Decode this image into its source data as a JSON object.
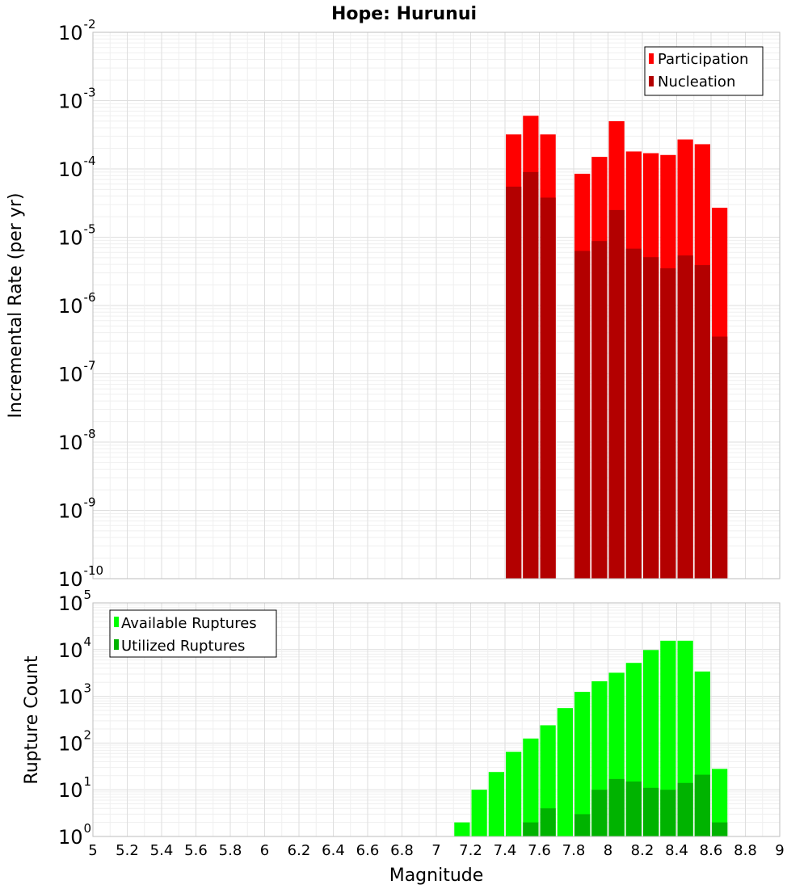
{
  "chart_data": [
    {
      "type": "bar",
      "panel": "top",
      "title": "Hope: Hurunui",
      "xlabel": "",
      "ylabel": "Incremental Rate (per yr)",
      "yscale": "log",
      "ylim_exponents": [
        -10,
        -2
      ],
      "xlim": [
        5,
        9
      ],
      "bin_width": 0.1,
      "legend": {
        "placement": "top-right",
        "entries": [
          "Participation",
          "Nucleation"
        ]
      },
      "series": [
        {
          "name": "Participation",
          "color": "#ff0000",
          "x": [
            7.45,
            7.55,
            7.65,
            7.85,
            7.95,
            8.05,
            8.15,
            8.25,
            8.35,
            8.45,
            8.55,
            8.65
          ],
          "values": [
            0.00032,
            0.0006,
            0.00032,
            8.5e-05,
            0.00015,
            0.0005,
            0.00018,
            0.00017,
            0.00016,
            0.00027,
            0.00023,
            2.7e-05
          ]
        },
        {
          "name": "Nucleation",
          "color": "#b30000",
          "x": [
            7.45,
            7.55,
            7.65,
            7.85,
            7.95,
            8.05,
            8.15,
            8.25,
            8.35,
            8.45,
            8.55,
            8.65
          ],
          "values": [
            5.5e-05,
            9e-05,
            3.8e-05,
            6.3e-06,
            8.8e-06,
            2.5e-05,
            6.8e-06,
            5.1e-06,
            3.5e-06,
            5.4e-06,
            3.9e-06,
            3.5e-07
          ]
        }
      ]
    },
    {
      "type": "bar",
      "panel": "bottom",
      "title": "",
      "xlabel": "Magnitude",
      "ylabel": "Rupture Count",
      "yscale": "log",
      "ylim_exponents": [
        0,
        5
      ],
      "xlim": [
        5,
        9
      ],
      "x_ticks": [
        "5",
        "5.2",
        "5.4",
        "5.6",
        "5.8",
        "6",
        "6.2",
        "6.4",
        "6.6",
        "6.8",
        "7",
        "7.2",
        "7.4",
        "7.6",
        "7.8",
        "8",
        "8.2",
        "8.4",
        "8.6",
        "8.8",
        "9"
      ],
      "bin_width": 0.1,
      "legend": {
        "placement": "top-left",
        "entries": [
          "Available Ruptures",
          "Utilized Ruptures"
        ]
      },
      "series": [
        {
          "name": "Available Ruptures",
          "color": "#00ff00",
          "x": [
            6.75,
            7.15,
            7.25,
            7.35,
            7.45,
            7.55,
            7.65,
            7.75,
            7.85,
            7.95,
            8.05,
            8.15,
            8.25,
            8.35,
            8.45,
            8.55,
            8.65
          ],
          "values": [
            1,
            2,
            10,
            24,
            65,
            125,
            240,
            560,
            1250,
            2100,
            3200,
            5200,
            9800,
            15500,
            15500,
            3400,
            28
          ]
        },
        {
          "name": "Utilized Ruptures",
          "color": "#00b300",
          "x": [
            7.45,
            7.55,
            7.65,
            7.85,
            7.95,
            8.05,
            8.15,
            8.25,
            8.35,
            8.45,
            8.55,
            8.65
          ],
          "values": [
            1,
            2,
            4,
            3,
            10,
            17,
            15,
            11,
            10,
            14,
            21,
            2
          ]
        }
      ]
    }
  ]
}
